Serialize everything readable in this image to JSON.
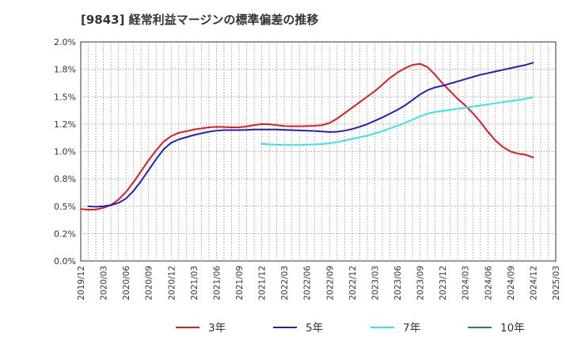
{
  "chart_data": {
    "type": "line",
    "title": "[9843]  経常利益マージンの標準偏差の推移",
    "xlabel": "",
    "ylabel": "",
    "y_ticks": [
      "0.0%",
      "0.2%",
      "0.5%",
      "0.8%",
      "1.0%",
      "1.2%",
      "1.5%",
      "1.8%",
      "2.0%"
    ],
    "y_tick_values": [
      0,
      0.25,
      0.5,
      0.75,
      1.0,
      1.25,
      1.5,
      1.75,
      2.0
    ],
    "ylim": [
      0,
      2.0
    ],
    "x_ticks": [
      "2019/12",
      "2020/03",
      "2020/06",
      "2020/09",
      "2020/12",
      "2021/03",
      "2021/06",
      "2021/09",
      "2021/12",
      "2022/03",
      "2022/06",
      "2022/09",
      "2022/12",
      "2023/03",
      "2023/06",
      "2023/09",
      "2023/12",
      "2024/03",
      "2024/06",
      "2024/09",
      "2024/12",
      "2025/03"
    ],
    "grid": true,
    "legend_position": "bottom",
    "colors": {
      "3y": "#e41a1c",
      "5y": "#1f1fbf",
      "7y": "#33e6e6",
      "10y": "#2a8a2a"
    },
    "series": [
      {
        "name": "3年",
        "key": "3y",
        "x": [
          "2019/12",
          "2020/01",
          "2020/02",
          "2020/03",
          "2020/04",
          "2020/05",
          "2020/06",
          "2020/07",
          "2020/08",
          "2020/09",
          "2020/10",
          "2020/11",
          "2020/12",
          "2021/01",
          "2021/02",
          "2021/03",
          "2021/04",
          "2021/05",
          "2021/06",
          "2021/07",
          "2021/08",
          "2021/09",
          "2021/10",
          "2021/11",
          "2021/12",
          "2022/01",
          "2022/02",
          "2022/03",
          "2022/04",
          "2022/05",
          "2022/06",
          "2022/07",
          "2022/08",
          "2022/09",
          "2022/10",
          "2022/11",
          "2022/12",
          "2023/01",
          "2023/02",
          "2023/03",
          "2023/04",
          "2023/05",
          "2023/06",
          "2023/07",
          "2023/08",
          "2023/09",
          "2023/10",
          "2023/11",
          "2023/12",
          "2024/01",
          "2024/02",
          "2024/03",
          "2024/04",
          "2024/05",
          "2024/06",
          "2024/07",
          "2024/08",
          "2024/09",
          "2024/10",
          "2024/11",
          "2024/12"
        ],
        "values": [
          0.475,
          0.468,
          0.47,
          0.485,
          0.51,
          0.56,
          0.63,
          0.72,
          0.82,
          0.92,
          1.01,
          1.09,
          1.14,
          1.17,
          1.185,
          1.2,
          1.21,
          1.22,
          1.225,
          1.223,
          1.22,
          1.22,
          1.228,
          1.24,
          1.25,
          1.248,
          1.24,
          1.232,
          1.23,
          1.23,
          1.232,
          1.235,
          1.24,
          1.26,
          1.3,
          1.35,
          1.4,
          1.45,
          1.5,
          1.55,
          1.61,
          1.67,
          1.72,
          1.76,
          1.79,
          1.8,
          1.77,
          1.7,
          1.62,
          1.55,
          1.48,
          1.42,
          1.35,
          1.27,
          1.18,
          1.1,
          1.04,
          1.0,
          0.98,
          0.97,
          0.945
        ]
      },
      {
        "name": "5年",
        "key": "5y",
        "x": [
          "2019/12",
          "2020/01",
          "2020/02",
          "2020/03",
          "2020/04",
          "2020/05",
          "2020/06",
          "2020/07",
          "2020/08",
          "2020/09",
          "2020/10",
          "2020/11",
          "2020/12",
          "2021/01",
          "2021/02",
          "2021/03",
          "2021/04",
          "2021/05",
          "2021/06",
          "2021/07",
          "2021/08",
          "2021/09",
          "2021/10",
          "2021/11",
          "2021/12",
          "2022/01",
          "2022/02",
          "2022/03",
          "2022/04",
          "2022/05",
          "2022/06",
          "2022/07",
          "2022/08",
          "2022/09",
          "2022/10",
          "2022/11",
          "2022/12",
          "2023/01",
          "2023/02",
          "2023/03",
          "2023/04",
          "2023/05",
          "2023/06",
          "2023/07",
          "2023/08",
          "2023/09",
          "2023/10",
          "2023/11",
          "2023/12",
          "2024/01",
          "2024/02",
          "2024/03",
          "2024/04",
          "2024/05",
          "2024/06",
          "2024/07",
          "2024/08",
          "2024/09",
          "2024/10",
          "2024/11",
          "2024/12"
        ],
        "values": [
          null,
          0.5,
          0.495,
          0.5,
          0.51,
          0.53,
          0.57,
          0.64,
          0.73,
          0.83,
          0.93,
          1.02,
          1.08,
          1.11,
          1.13,
          1.15,
          1.165,
          1.18,
          1.19,
          1.195,
          1.195,
          1.195,
          1.197,
          1.2,
          1.2,
          1.2,
          1.2,
          1.197,
          1.195,
          1.192,
          1.19,
          1.187,
          1.182,
          1.178,
          1.18,
          1.19,
          1.205,
          1.225,
          1.25,
          1.28,
          1.31,
          1.345,
          1.38,
          1.42,
          1.47,
          1.52,
          1.56,
          1.585,
          1.6,
          1.62,
          1.64,
          1.66,
          1.68,
          1.7,
          1.715,
          1.73,
          1.745,
          1.76,
          1.775,
          1.79,
          1.81
        ]
      },
      {
        "name": "7年",
        "key": "7y",
        "x": [
          "2021/12",
          "2022/01",
          "2022/02",
          "2022/03",
          "2022/04",
          "2022/05",
          "2022/06",
          "2022/07",
          "2022/08",
          "2022/09",
          "2022/10",
          "2022/11",
          "2022/12",
          "2023/01",
          "2023/02",
          "2023/03",
          "2023/04",
          "2023/05",
          "2023/06",
          "2023/07",
          "2023/08",
          "2023/09",
          "2023/10",
          "2023/11",
          "2023/12",
          "2024/01",
          "2024/02",
          "2024/03",
          "2024/04",
          "2024/05",
          "2024/06",
          "2024/07",
          "2024/08",
          "2024/09",
          "2024/10",
          "2024/11",
          "2024/12"
        ],
        "values": [
          1.07,
          1.065,
          1.062,
          1.06,
          1.06,
          1.06,
          1.062,
          1.065,
          1.068,
          1.075,
          1.085,
          1.1,
          1.115,
          1.13,
          1.145,
          1.165,
          1.185,
          1.21,
          1.235,
          1.26,
          1.29,
          1.32,
          1.345,
          1.36,
          1.37,
          1.38,
          1.39,
          1.4,
          1.41,
          1.42,
          1.43,
          1.44,
          1.45,
          1.46,
          1.47,
          1.48,
          1.495
        ]
      },
      {
        "name": "10年",
        "key": "10y",
        "x": [],
        "values": []
      }
    ]
  }
}
